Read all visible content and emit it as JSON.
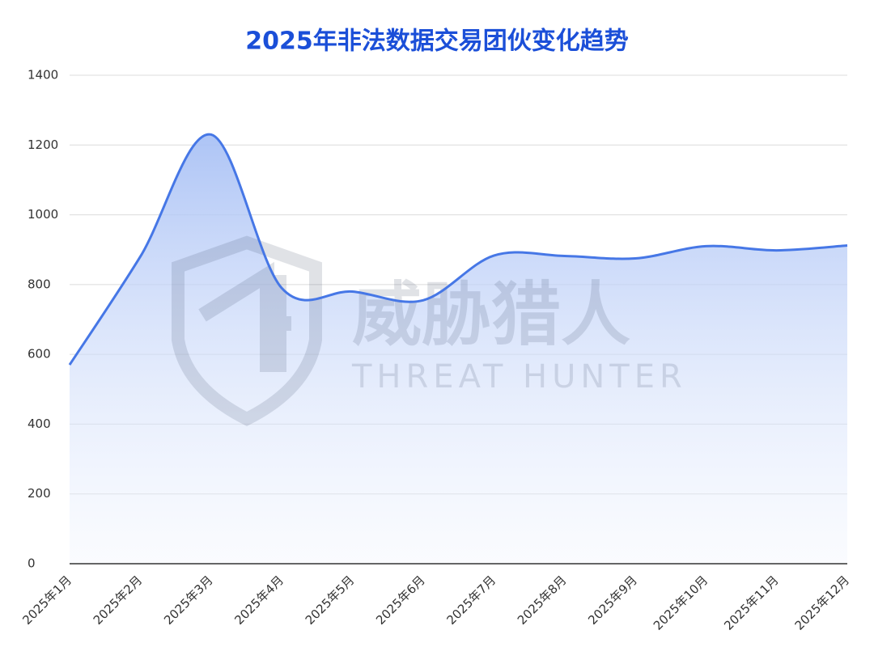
{
  "chart_data": {
    "type": "area",
    "title": "2025年非法数据交易团伙变化趋势",
    "watermark": [
      "威胁猎人",
      "THREAT HUNTER"
    ],
    "categories": [
      "2025年1月",
      "2025年2月",
      "2025年3月",
      "2025年4月",
      "2025年5月",
      "2025年6月",
      "2025年7月",
      "2025年8月",
      "2025年9月",
      "2025年10月",
      "2025年11月",
      "2025年12月"
    ],
    "values": [
      570,
      880,
      1230,
      790,
      780,
      755,
      883,
      882,
      875,
      910,
      898,
      912
    ],
    "color": "#4677e6",
    "ylim": [
      0,
      1400
    ],
    "yticks": [
      0,
      200,
      400,
      600,
      800,
      1000,
      1200,
      1400
    ],
    "grid": true
  }
}
